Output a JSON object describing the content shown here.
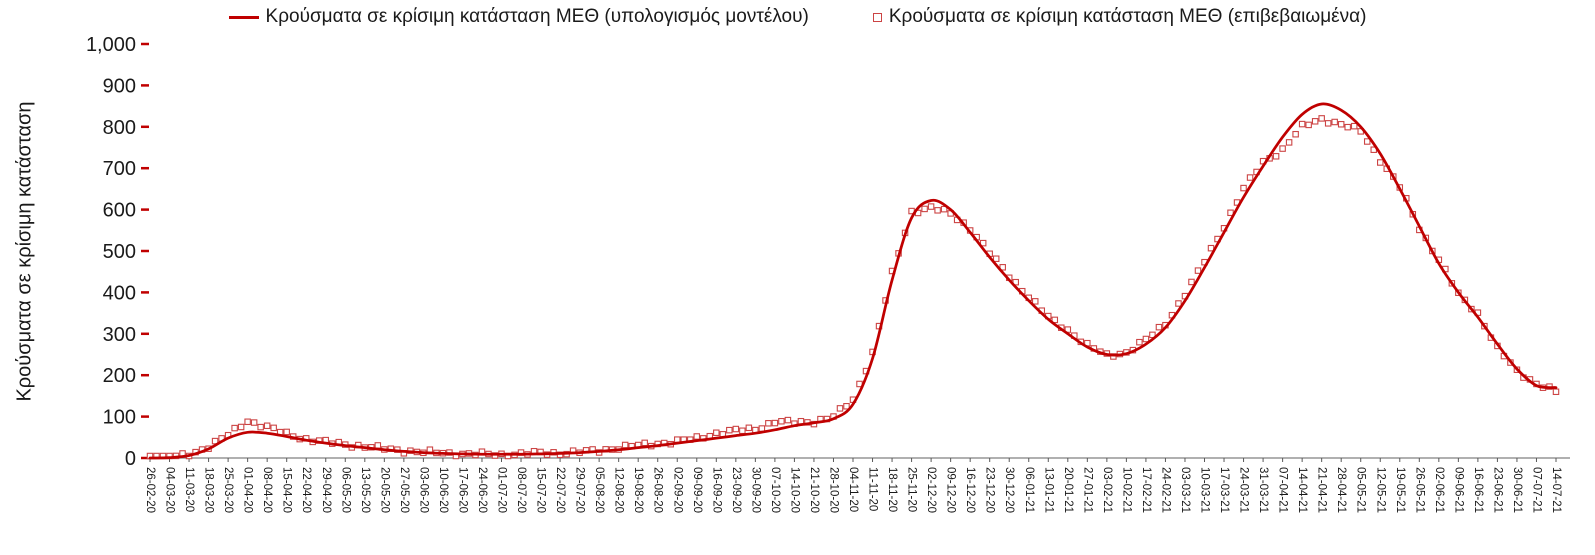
{
  "chart_data": {
    "type": "line",
    "title": "",
    "xlabel": "",
    "ylabel": "Κρούσματα σε κρίσιμη κατάσταση",
    "ylim": [
      0,
      1000
    ],
    "y_tick_step": 100,
    "y_tick_labels": [
      "0",
      "100",
      "200",
      "300",
      "400",
      "500",
      "600",
      "700",
      "800",
      "900",
      "1,000"
    ],
    "grid": false,
    "legend_position": "top",
    "line_color": "#c00000",
    "marker_color": "#cc4444",
    "axis_color": "#808080",
    "tick_color_y": "#c00000",
    "tick_color_x": "#595959",
    "categories": [
      "26-02-20",
      "04-03-20",
      "11-03-20",
      "18-03-20",
      "25-03-20",
      "01-04-20",
      "08-04-20",
      "15-04-20",
      "22-04-20",
      "29-04-20",
      "06-05-20",
      "13-05-20",
      "20-05-20",
      "27-05-20",
      "03-06-20",
      "10-06-20",
      "17-06-20",
      "24-06-20",
      "01-07-20",
      "08-07-20",
      "15-07-20",
      "22-07-20",
      "29-07-20",
      "05-08-20",
      "12-08-20",
      "19-08-20",
      "26-08-20",
      "02-09-20",
      "09-09-20",
      "16-09-20",
      "23-09-20",
      "30-09-20",
      "07-10-20",
      "14-10-20",
      "21-10-20",
      "28-10-20",
      "04-11-20",
      "11-11-20",
      "18-11-20",
      "25-11-20",
      "02-12-20",
      "09-12-20",
      "16-12-20",
      "23-12-20",
      "30-12-20",
      "06-01-21",
      "13-01-21",
      "20-01-21",
      "27-01-21",
      "03-02-21",
      "10-02-21",
      "17-02-21",
      "24-02-21",
      "03-03-21",
      "10-03-21",
      "17-03-21",
      "24-03-21",
      "31-03-21",
      "07-04-21",
      "14-04-21",
      "21-04-21",
      "28-04-21",
      "05-05-21",
      "12-05-21",
      "19-05-21",
      "26-05-21",
      "02-06-21",
      "09-06-21",
      "16-06-21",
      "23-06-21",
      "30-06-21",
      "07-07-21",
      "14-07-21"
    ],
    "series": [
      {
        "name": "Κρούσματα σε κρίσιμη κατάσταση ΜΕΘ (υπολογισμός μοντέλου)",
        "style": "line",
        "values": [
          0,
          1,
          6,
          22,
          48,
          62,
          60,
          52,
          43,
          36,
          30,
          25,
          20,
          16,
          13,
          11,
          10,
          9,
          9,
          9,
          10,
          11,
          13,
          16,
          20,
          25,
          30,
          36,
          42,
          48,
          54,
          60,
          68,
          78,
          85,
          95,
          130,
          240,
          430,
          580,
          622,
          600,
          545,
          485,
          430,
          380,
          335,
          300,
          268,
          250,
          252,
          275,
          315,
          380,
          460,
          545,
          630,
          705,
          775,
          830,
          855,
          840,
          800,
          735,
          650,
          560,
          470,
          400,
          340,
          275,
          215,
          175,
          170
        ]
      },
      {
        "name": "Κρούσματα σε κρίσιμη κατάσταση ΜΕΘ (επιβεβαιωμένα)",
        "style": "open-square-markers",
        "values": [
          0,
          1,
          8,
          28,
          55,
          90,
          75,
          58,
          46,
          38,
          33,
          28,
          22,
          18,
          14,
          12,
          10,
          9,
          8,
          10,
          12,
          12,
          14,
          18,
          25,
          30,
          35,
          40,
          47,
          60,
          66,
          70,
          88,
          85,
          88,
          100,
          140,
          255,
          445,
          595,
          605,
          590,
          555,
          495,
          440,
          390,
          340,
          310,
          272,
          248,
          255,
          285,
          325,
          395,
          475,
          560,
          650,
          715,
          745,
          800,
          820,
          805,
          790,
          720,
          655,
          555,
          480,
          395,
          350,
          265,
          210,
          180,
          160
        ]
      }
    ]
  }
}
